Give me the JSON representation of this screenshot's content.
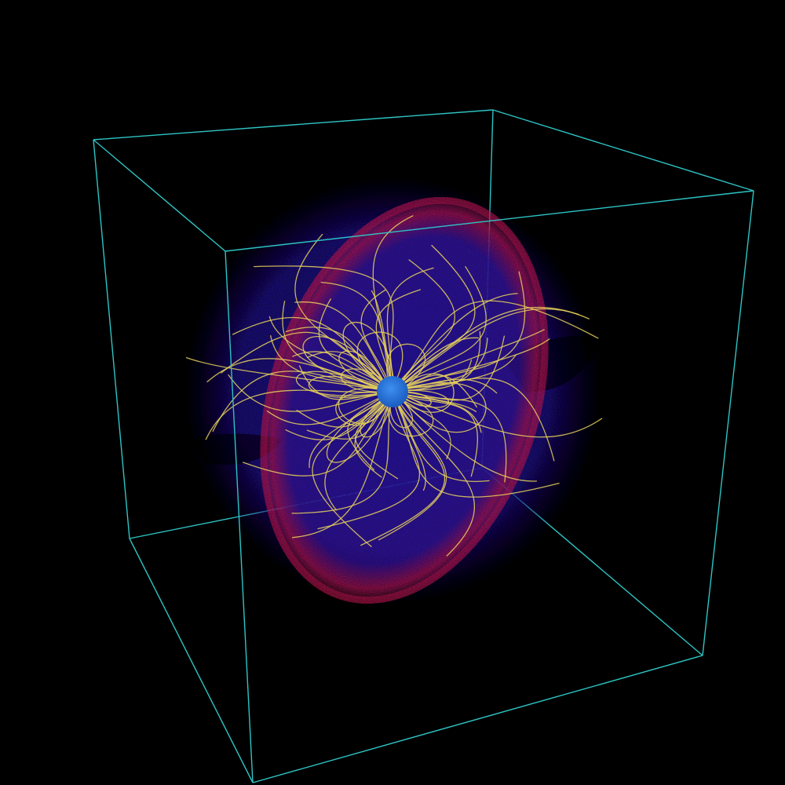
{
  "scene": {
    "background_color": "#000000",
    "bounding_box_color": "#2ec4c4",
    "outer_shell_color": "#2a12b8",
    "inner_shell_color": "#d01a5a",
    "field_line_color": "#e8d25a",
    "central_body_color": "#1f6fd6",
    "field_line_count": 70,
    "icons": [
      "wireframe-bounding-box",
      "particle-sphere",
      "magnetic-field-lines",
      "central-star"
    ]
  }
}
